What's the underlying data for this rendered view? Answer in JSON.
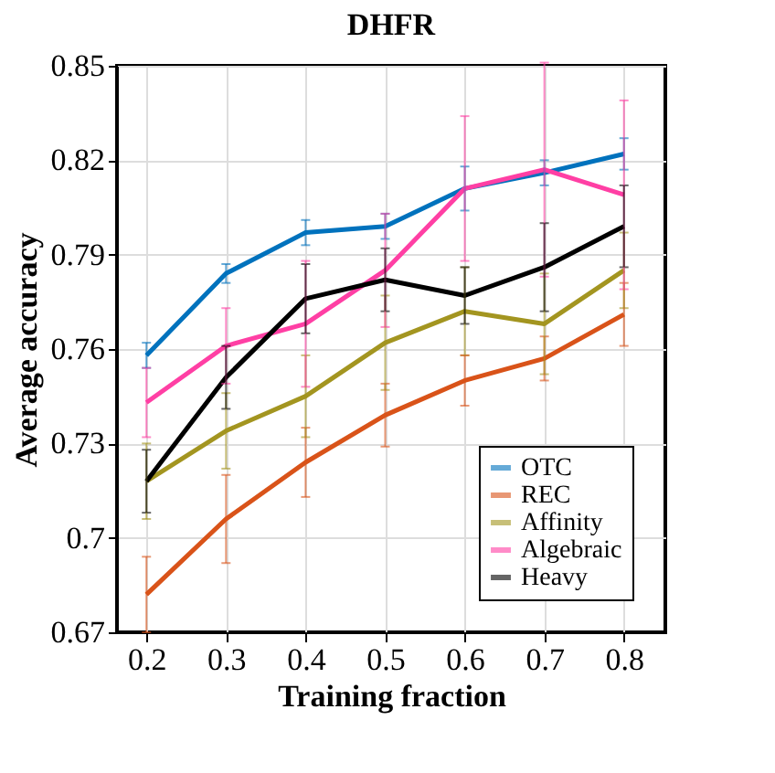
{
  "chart_data": {
    "type": "line",
    "title": "DHFR",
    "xlabel": "Training fraction",
    "ylabel": "Average accuracy",
    "x": [
      0.2,
      0.3,
      0.4,
      0.5,
      0.6,
      0.7,
      0.8
    ],
    "series": [
      {
        "name": "OTC",
        "color": "#0072bd",
        "values": [
          0.758,
          0.784,
          0.797,
          0.799,
          0.811,
          0.816,
          0.822
        ],
        "errors": [
          0.004,
          0.003,
          0.004,
          0.004,
          0.007,
          0.004,
          0.005
        ]
      },
      {
        "name": "REC",
        "color": "#d95319",
        "values": [
          0.682,
          0.706,
          0.724,
          0.739,
          0.75,
          0.757,
          0.771
        ],
        "errors": [
          0.012,
          0.014,
          0.011,
          0.01,
          0.008,
          0.007,
          0.01
        ]
      },
      {
        "name": "Affinity",
        "color": "#a39520",
        "values": [
          0.718,
          0.734,
          0.745,
          0.762,
          0.772,
          0.768,
          0.785
        ],
        "errors": [
          0.012,
          0.012,
          0.013,
          0.015,
          0.014,
          0.016,
          0.012
        ]
      },
      {
        "name": "Algebraic",
        "color": "#ff3fa4",
        "values": [
          0.743,
          0.761,
          0.768,
          0.785,
          0.811,
          0.817,
          0.809
        ],
        "errors": [
          0.011,
          0.012,
          0.02,
          0.018,
          0.023,
          0.034,
          0.03
        ]
      },
      {
        "name": "Heavy",
        "color": "#000000",
        "values": [
          0.718,
          0.751,
          0.776,
          0.782,
          0.777,
          0.786,
          0.799
        ],
        "errors": [
          0.01,
          0.01,
          0.011,
          0.01,
          0.009,
          0.014,
          0.013
        ]
      }
    ],
    "xlim": [
      0.163,
      0.852
    ],
    "xticks": [
      0.2,
      0.3,
      0.4,
      0.5,
      0.6,
      0.7,
      0.8
    ],
    "ylim": [
      0.67,
      0.85
    ],
    "yticks": [
      0.67,
      {
        "value": 0.7,
        "label": "0.7"
      },
      0.73,
      0.76,
      0.79,
      0.82,
      0.85
    ],
    "grid": true,
    "legend": "bottom right",
    "marker": "none",
    "line_style": "solid"
  }
}
